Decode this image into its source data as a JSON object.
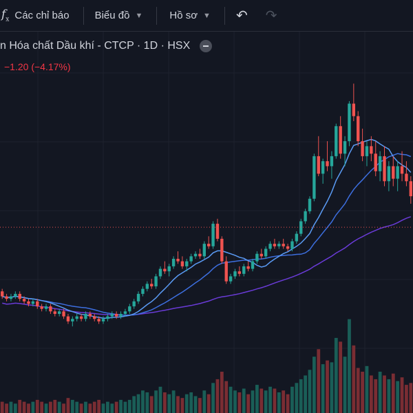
{
  "toolbar": {
    "fx_icon": "function-fx-icon",
    "indicators_label": "Các chỉ báo",
    "chart_type_label": "Biểu đồ",
    "profile_label": "Hồ sơ",
    "chevron_icon": "chevron-down-icon",
    "undo_icon": "undo-icon",
    "redo_icon": "redo-icon"
  },
  "legend": {
    "title": "n Hóa chất Dầu khí - CTCP · 1D · HSX",
    "change": "−1.20 (−4.17%)",
    "collapse_icon": "minus-circle-icon"
  },
  "colors": {
    "background": "#131722",
    "up": "#26a69a",
    "down": "#ef5350",
    "ma_fast": "#5b9cf6",
    "ma_mid": "#3d6fe0",
    "ma_slow": "#6a3bd8",
    "price_line": "#ef5350"
  },
  "chart_data": {
    "type": "candlestick",
    "note_scale": "approximate relative price units; no axis printed",
    "candles": [
      [
        20,
        21,
        17,
        18
      ],
      [
        18,
        19,
        16,
        17
      ],
      [
        17,
        19,
        16,
        18
      ],
      [
        18,
        20,
        17,
        19
      ],
      [
        19,
        20,
        16,
        17
      ],
      [
        17,
        18,
        15,
        16
      ],
      [
        16,
        17,
        14,
        15
      ],
      [
        15,
        17,
        14,
        16
      ],
      [
        16,
        17,
        13,
        14
      ],
      [
        14,
        15,
        12,
        13
      ],
      [
        13,
        15,
        12,
        14
      ],
      [
        14,
        15,
        11,
        12
      ],
      [
        12,
        13,
        10,
        11
      ],
      [
        11,
        13,
        10,
        12
      ],
      [
        12,
        13,
        9,
        10
      ],
      [
        10,
        11,
        7,
        8
      ],
      [
        8,
        10,
        6,
        9
      ],
      [
        9,
        11,
        8,
        10
      ],
      [
        10,
        11,
        8,
        9
      ],
      [
        9,
        12,
        8,
        11
      ],
      [
        11,
        12,
        9,
        10
      ],
      [
        10,
        11,
        8,
        9
      ],
      [
        9,
        10,
        7,
        8
      ],
      [
        8,
        10,
        7,
        9
      ],
      [
        9,
        11,
        8,
        10
      ],
      [
        10,
        12,
        9,
        11
      ],
      [
        11,
        12,
        9,
        10
      ],
      [
        10,
        12,
        9,
        11
      ],
      [
        11,
        13,
        10,
        12
      ],
      [
        12,
        15,
        11,
        14
      ],
      [
        14,
        17,
        13,
        16
      ],
      [
        16,
        20,
        15,
        19
      ],
      [
        19,
        22,
        18,
        21
      ],
      [
        21,
        24,
        20,
        23
      ],
      [
        23,
        25,
        21,
        22
      ],
      [
        22,
        27,
        21,
        26
      ],
      [
        26,
        30,
        25,
        29
      ],
      [
        29,
        32,
        27,
        28
      ],
      [
        28,
        31,
        26,
        30
      ],
      [
        30,
        34,
        29,
        33
      ],
      [
        33,
        36,
        31,
        32
      ],
      [
        32,
        34,
        29,
        30
      ],
      [
        30,
        33,
        28,
        32
      ],
      [
        32,
        35,
        31,
        34
      ],
      [
        34,
        36,
        33,
        35
      ],
      [
        35,
        37,
        33,
        34
      ],
      [
        34,
        40,
        33,
        39
      ],
      [
        39,
        42,
        37,
        38
      ],
      [
        38,
        48,
        37,
        47
      ],
      [
        47,
        49,
        40,
        41
      ],
      [
        41,
        42,
        31,
        32
      ],
      [
        32,
        34,
        23,
        24
      ],
      [
        24,
        27,
        23,
        26
      ],
      [
        26,
        29,
        25,
        28
      ],
      [
        28,
        30,
        26,
        27
      ],
      [
        27,
        31,
        26,
        30
      ],
      [
        30,
        32,
        28,
        29
      ],
      [
        29,
        33,
        28,
        32
      ],
      [
        32,
        36,
        31,
        35
      ],
      [
        35,
        37,
        33,
        34
      ],
      [
        34,
        38,
        33,
        37
      ],
      [
        37,
        40,
        36,
        39
      ],
      [
        39,
        41,
        37,
        38
      ],
      [
        38,
        40,
        37,
        39
      ],
      [
        39,
        41,
        37,
        38
      ],
      [
        38,
        39,
        36,
        37
      ],
      [
        37,
        41,
        36,
        40
      ],
      [
        40,
        44,
        39,
        43
      ],
      [
        43,
        49,
        42,
        48
      ],
      [
        48,
        53,
        47,
        52
      ],
      [
        52,
        58,
        51,
        57
      ],
      [
        57,
        75,
        56,
        74
      ],
      [
        74,
        82,
        66,
        67
      ],
      [
        67,
        73,
        63,
        72
      ],
      [
        72,
        80,
        68,
        70
      ],
      [
        70,
        76,
        65,
        74
      ],
      [
        74,
        87,
        73,
        86
      ],
      [
        86,
        90,
        73,
        75
      ],
      [
        75,
        82,
        70,
        80
      ],
      [
        80,
        96,
        78,
        95
      ],
      [
        95,
        103,
        88,
        90
      ],
      [
        90,
        92,
        78,
        80
      ],
      [
        80,
        85,
        72,
        74
      ],
      [
        74,
        80,
        70,
        78
      ],
      [
        78,
        82,
        72,
        75
      ],
      [
        75,
        80,
        66,
        68
      ],
      [
        68,
        76,
        64,
        74
      ],
      [
        74,
        78,
        62,
        64
      ],
      [
        64,
        72,
        60,
        70
      ],
      [
        70,
        74,
        62,
        65
      ],
      [
        65,
        72,
        60,
        70
      ],
      [
        70,
        76,
        64,
        67
      ],
      [
        67,
        72,
        62,
        64
      ],
      [
        64,
        66,
        55,
        58
      ]
    ],
    "volumes": [
      6,
      5,
      6,
      5,
      7,
      6,
      5,
      6,
      7,
      6,
      5,
      6,
      7,
      6,
      5,
      8,
      7,
      6,
      5,
      6,
      5,
      6,
      7,
      5,
      6,
      5,
      6,
      7,
      6,
      7,
      9,
      10,
      12,
      11,
      9,
      12,
      14,
      11,
      10,
      12,
      9,
      8,
      10,
      11,
      9,
      8,
      12,
      10,
      16,
      18,
      22,
      17,
      14,
      12,
      11,
      13,
      10,
      12,
      15,
      13,
      12,
      14,
      13,
      11,
      12,
      10,
      14,
      16,
      18,
      20,
      23,
      30,
      34,
      26,
      28,
      27,
      40,
      38,
      30,
      50,
      36,
      24,
      22,
      25,
      20,
      18,
      22,
      20,
      18,
      21,
      17,
      19,
      15,
      16
    ],
    "last_price_line": 45.6
  }
}
